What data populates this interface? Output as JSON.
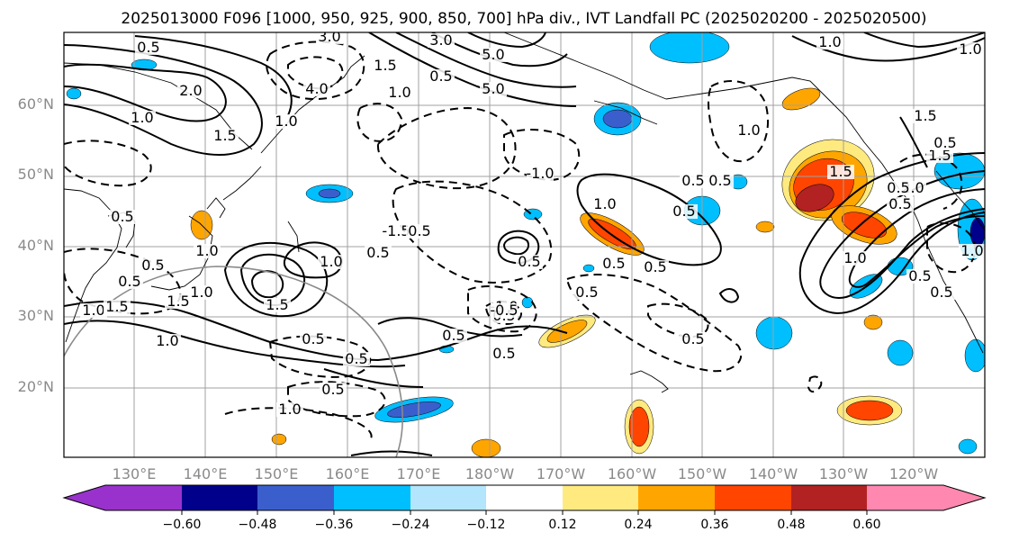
{
  "title": "2025013000 F096 [1000, 950, 925, 900, 850, 700] hPa div., IVT Landfall PC (2025020200 - 2025020500)",
  "map": {
    "lat_labels": [
      "60°N",
      "50°N",
      "40°N",
      "30°N",
      "20°N"
    ],
    "lon_labels": [
      "130°E",
      "140°E",
      "150°E",
      "160°E",
      "170°E",
      "180°W",
      "170°W",
      "160°W",
      "150°W",
      "140°W",
      "130°W",
      "120°W"
    ],
    "contour_labels": [
      "0.5",
      "2.0",
      "1.0",
      "1.5",
      "3.0",
      "4.0",
      "3.0",
      "5.0",
      "5.0",
      "1.0",
      "0.5",
      "1.5",
      "1.0",
      "-1.5",
      "0.5",
      "-1.0",
      "0.5",
      "1.5",
      "1.0",
      "1.0",
      "2.0",
      "0.5",
      "1.5",
      "0.5",
      "0.5",
      "1.5",
      "1.0",
      "1.5",
      "1.0",
      "1.5",
      "-1.0",
      "0.5",
      "0.5",
      "0.5",
      "1.0",
      "0.5",
      "0.5",
      "1.0",
      "0.5",
      "0.5",
      "0.5",
      "0.5",
      "1.0",
      "1.0",
      "0.5",
      "1.0",
      "0.5",
      "1.0",
      "0.5",
      "0.5",
      "0.5",
      "0.5",
      "1.0",
      "0.5",
      "1.5",
      "-0.5",
      "1.0",
      "0.5",
      "0.5",
      "0.5"
    ],
    "colors": {
      "frame": "#000000",
      "grid": "#a0a0a0",
      "coast": "#000000"
    }
  },
  "colorbar": {
    "ticks": [
      "−0.60",
      "−0.48",
      "−0.36",
      "−0.24",
      "−0.12",
      "0.12",
      "0.24",
      "0.36",
      "0.48",
      "0.60"
    ],
    "colors": [
      "#9932cc",
      "#00008b",
      "#3a5fcd",
      "#00bfff",
      "#b3e5fc",
      "#ffffff",
      "#ffea80",
      "#ffa500",
      "#ff4500",
      "#b22222",
      "#ff88b0"
    ]
  }
}
